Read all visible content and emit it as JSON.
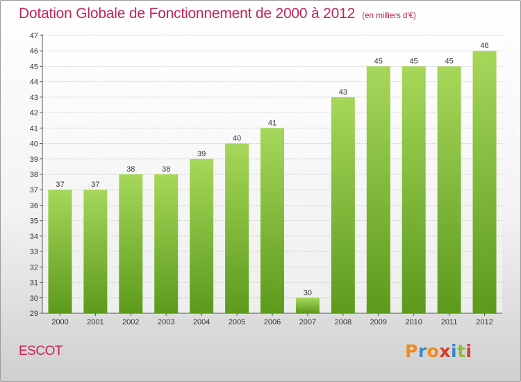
{
  "title": "Dotation Globale de Fonctionnement de 2000 à 2012",
  "subtitle": "(en milliers d'€)",
  "commune": "ESCOT",
  "logo": {
    "text": "Proxiti",
    "colors": [
      "#f08a1c",
      "#3a88c8",
      "#f08a1c",
      "#d93a2b",
      "#3a88c8",
      "#8cbf3a",
      "#d93a2b"
    ]
  },
  "colors": {
    "title": "#c4245a",
    "bar_top": "#a6d75a",
    "bar_bottom": "#5c9a1c",
    "grid": "#cccccc"
  },
  "chart_data": {
    "type": "bar",
    "categories": [
      "2000",
      "2001",
      "2002",
      "2003",
      "2004",
      "2005",
      "2006",
      "2007",
      "2008",
      "2009",
      "2010",
      "2011",
      "2012"
    ],
    "values": [
      37,
      37,
      38,
      38,
      39,
      40,
      41,
      30,
      43,
      45,
      45,
      45,
      46
    ],
    "ylim": [
      29,
      47
    ],
    "yticks": [
      29,
      30,
      31,
      32,
      33,
      34,
      35,
      36,
      37,
      38,
      39,
      40,
      41,
      42,
      43,
      44,
      45,
      46,
      47
    ],
    "grid": true,
    "data_labels": true
  }
}
